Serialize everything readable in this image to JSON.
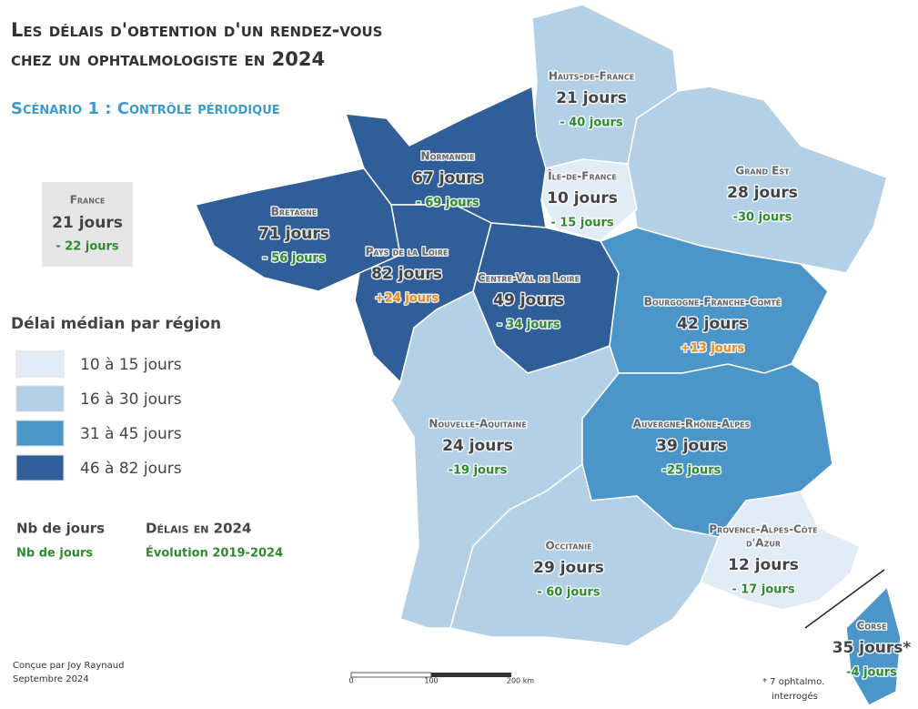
{
  "title": [
    "Les délais d'obtention d'un rendez-vous",
    "chez un ophtalmologiste en 2024"
  ],
  "subtitle": "Scénario 1 : Contrôle périodique",
  "france": {
    "name": "France",
    "days": "21 jours",
    "change": "- 22 jours"
  },
  "legend": {
    "title": "Délai médian par région",
    "items": [
      {
        "label": "10 à 15 jours",
        "color": "#e2ecf7"
      },
      {
        "label": "16 à 30 jours",
        "color": "#b3d0e7"
      },
      {
        "label": "31 à 45 jours",
        "color": "#4b95c9"
      },
      {
        "label": "46 à 82 jours",
        "color": "#2f5e99"
      }
    ]
  },
  "key": {
    "days": "Nb de jours",
    "days_title": "Délais en 2024",
    "change": "Nb de jours",
    "change_title": "Évolution 2019-2024"
  },
  "regions": [
    {
      "name": [
        "Hauts-de-France"
      ],
      "days": "21 jours",
      "change": "- 40 jours",
      "color": "#b3d0e7",
      "change_color": "#2e8b2e"
    },
    {
      "name": [
        "Grand Est"
      ],
      "days": "28 jours",
      "change": "-30 jours",
      "color": "#b3d0e7",
      "change_color": "#2e8b2e"
    },
    {
      "name": [
        "Île-de-France"
      ],
      "days": "10 jours",
      "change": "- 15 jours",
      "color": "#e2ecf7",
      "change_color": "#2e8b2e"
    },
    {
      "name": [
        "Normandie"
      ],
      "days": "67 jours",
      "change": "- 69 jours",
      "color": "#2f5e99",
      "change_color": "#2e8b2e"
    },
    {
      "name": [
        "Bretagne"
      ],
      "days": "71 jours",
      "change": "- 56 jours",
      "color": "#2f5e99",
      "change_color": "#2e8b2e"
    },
    {
      "name": [
        "Pays de la Loire"
      ],
      "days": "82 jours",
      "change": "+24 jours",
      "color": "#2f5e99",
      "change_color": "#f08a1d"
    },
    {
      "name": [
        "Centre-Val de Loire"
      ],
      "days": "49 jours",
      "change": "- 34 jours",
      "color": "#2f5e99",
      "change_color": "#2e8b2e"
    },
    {
      "name": [
        "Bourgogne-Franche-Comté"
      ],
      "days": "42 jours",
      "change": "+13 jours",
      "color": "#4b95c9",
      "change_color": "#f08a1d"
    },
    {
      "name": [
        "Nouvelle-Aquitaine"
      ],
      "days": "24 jours",
      "change": "-19 jours",
      "color": "#b3d0e7",
      "change_color": "#2e8b2e"
    },
    {
      "name": [
        "Auvergne-Rhône-Alpes"
      ],
      "days": "39 jours",
      "change": "-25 jours",
      "color": "#4b95c9",
      "change_color": "#2e8b2e"
    },
    {
      "name": [
        "Occitanie"
      ],
      "days": "29 jours",
      "change": "- 60 jours",
      "color": "#b3d0e7",
      "change_color": "#2e8b2e"
    },
    {
      "name": [
        "Provence-Alpes-Côte",
        "d'Azur"
      ],
      "days": "12 jours",
      "change": "- 17 jours",
      "color": "#e2ecf7",
      "change_color": "#2e8b2e"
    },
    {
      "name": [
        "Corse"
      ],
      "days": "35 jours*",
      "change": "-4 jours",
      "color": "#4b95c9",
      "change_color": "#2e8b2e"
    }
  ],
  "scale": [
    "0",
    "100",
    "200 km"
  ],
  "note": [
    "* 7 ophtalmo.",
    "interrogés"
  ],
  "credit": [
    "Conçue par Joy Raynaud",
    "Septembre 2024"
  ]
}
